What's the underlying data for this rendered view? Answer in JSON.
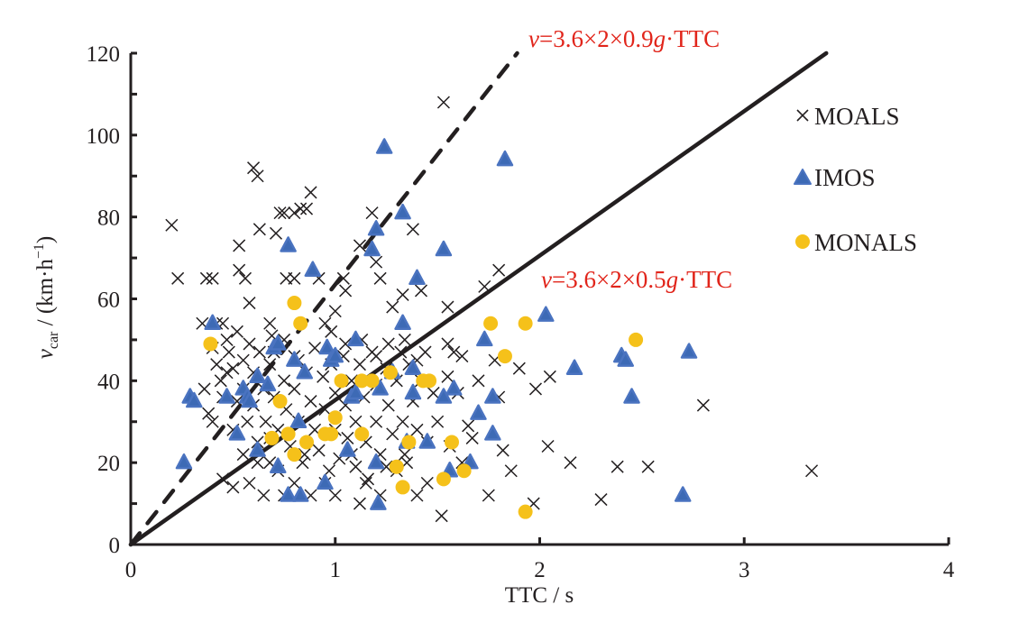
{
  "chart_data": {
    "type": "scatter",
    "title": "",
    "xlabel": "TTC / s",
    "ylabel_parts": {
      "var": "v",
      "sub": "car",
      "rest": " / (km·h",
      "sup": "−1",
      "close": ")"
    },
    "xlim": [
      0,
      4
    ],
    "ylim": [
      0,
      120
    ],
    "x_ticks": [
      "0",
      "1",
      "2",
      "3",
      "4"
    ],
    "y_ticks": [
      "0",
      "20",
      "40",
      "60",
      "80",
      "100",
      "120"
    ],
    "grid": false,
    "legend_position": "top-right",
    "colors": {
      "axis": "#231f20",
      "moals": "#231f20",
      "imos": "#3d6ab5",
      "monals": "#f5c11a",
      "annotation": "#e1251b"
    },
    "reference_lines": [
      {
        "name": "dashed",
        "label_var": "v",
        "label_mid": "=3.6×2×0.9",
        "label_g": "g",
        "label_end": "·TTC",
        "slope": 63.5
      },
      {
        "name": "solid",
        "label_var": "v",
        "label_mid": "=3.6×2×0.5",
        "label_g": "g",
        "label_end": "·TTC",
        "slope": 35.28
      }
    ],
    "series": [
      {
        "name": "MOALS",
        "marker": "x",
        "points": [
          [
            0.2,
            78
          ],
          [
            0.23,
            65
          ],
          [
            0.37,
            65
          ],
          [
            0.4,
            65
          ],
          [
            0.35,
            54
          ],
          [
            0.42,
            54
          ],
          [
            0.45,
            54
          ],
          [
            0.53,
            73
          ],
          [
            0.53,
            67
          ],
          [
            0.56,
            65
          ],
          [
            0.58,
            59
          ],
          [
            0.6,
            92
          ],
          [
            0.62,
            90
          ],
          [
            0.63,
            77
          ],
          [
            0.68,
            54
          ],
          [
            0.69,
            51
          ],
          [
            0.71,
            76
          ],
          [
            0.73,
            81
          ],
          [
            0.75,
            81
          ],
          [
            0.76,
            65
          ],
          [
            0.8,
            81
          ],
          [
            0.8,
            65
          ],
          [
            0.83,
            82
          ],
          [
            0.86,
            82
          ],
          [
            0.88,
            86
          ],
          [
            0.92,
            65
          ],
          [
            0.95,
            54
          ],
          [
            1.0,
            57
          ],
          [
            1.04,
            65
          ],
          [
            1.05,
            62
          ],
          [
            1.12,
            73
          ],
          [
            1.18,
            81
          ],
          [
            1.2,
            69
          ],
          [
            1.22,
            65
          ],
          [
            1.28,
            58
          ],
          [
            1.33,
            61
          ],
          [
            1.38,
            77
          ],
          [
            1.42,
            62
          ],
          [
            1.53,
            108
          ],
          [
            1.55,
            58
          ],
          [
            1.73,
            63
          ],
          [
            1.8,
            67
          ],
          [
            0.36,
            38
          ],
          [
            0.38,
            32
          ],
          [
            0.4,
            30
          ],
          [
            0.42,
            44
          ],
          [
            0.44,
            40
          ],
          [
            0.45,
            36
          ],
          [
            0.47,
            42
          ],
          [
            0.48,
            47
          ],
          [
            0.5,
            43
          ],
          [
            0.5,
            28
          ],
          [
            0.52,
            35
          ],
          [
            0.55,
            45
          ],
          [
            0.55,
            38
          ],
          [
            0.57,
            30
          ],
          [
            0.6,
            42
          ],
          [
            0.6,
            34
          ],
          [
            0.62,
            25
          ],
          [
            0.62,
            20
          ],
          [
            0.65,
            38
          ],
          [
            0.66,
            30
          ],
          [
            0.68,
            44
          ],
          [
            0.68,
            20
          ],
          [
            0.7,
            36
          ],
          [
            0.72,
            28
          ],
          [
            0.72,
            18
          ],
          [
            0.75,
            40
          ],
          [
            0.76,
            33
          ],
          [
            0.78,
            24
          ],
          [
            0.8,
            46
          ],
          [
            0.8,
            38
          ],
          [
            0.82,
            30
          ],
          [
            0.84,
            20
          ],
          [
            0.86,
            42
          ],
          [
            0.88,
            35
          ],
          [
            0.9,
            28
          ],
          [
            0.92,
            23
          ],
          [
            0.94,
            41
          ],
          [
            0.95,
            33
          ],
          [
            0.97,
            18
          ],
          [
            0.98,
            44
          ],
          [
            1.0,
            37
          ],
          [
            1.0,
            28
          ],
          [
            1.02,
            21
          ],
          [
            1.04,
            46
          ],
          [
            1.05,
            34
          ],
          [
            1.06,
            26
          ],
          [
            1.08,
            40
          ],
          [
            1.1,
            30
          ],
          [
            1.1,
            19
          ],
          [
            1.12,
            44
          ],
          [
            1.14,
            36
          ],
          [
            1.15,
            25
          ],
          [
            1.16,
            16
          ],
          [
            1.18,
            47
          ],
          [
            1.2,
            39
          ],
          [
            1.2,
            30
          ],
          [
            1.22,
            22
          ],
          [
            1.25,
            43
          ],
          [
            1.26,
            34
          ],
          [
            1.28,
            27
          ],
          [
            1.3,
            40
          ],
          [
            1.3,
            18
          ],
          [
            1.32,
            47
          ],
          [
            1.33,
            30
          ],
          [
            1.34,
            22
          ],
          [
            1.36,
            44
          ],
          [
            1.38,
            35
          ],
          [
            1.4,
            28
          ],
          [
            1.42,
            40
          ],
          [
            1.44,
            47
          ],
          [
            1.45,
            25
          ],
          [
            1.48,
            37
          ],
          [
            1.5,
            30
          ],
          [
            1.52,
            7
          ],
          [
            1.55,
            41
          ],
          [
            1.56,
            24
          ],
          [
            1.58,
            47
          ],
          [
            1.6,
            37
          ],
          [
            1.62,
            20
          ],
          [
            1.65,
            29
          ],
          [
            1.67,
            26
          ],
          [
            1.7,
            40
          ],
          [
            1.75,
            12
          ],
          [
            1.78,
            45
          ],
          [
            1.8,
            36
          ],
          [
            1.82,
            23
          ],
          [
            1.86,
            18
          ],
          [
            1.9,
            43
          ],
          [
            1.98,
            38
          ],
          [
            1.97,
            10
          ],
          [
            2.04,
            24
          ],
          [
            2.05,
            41
          ],
          [
            2.15,
            20
          ],
          [
            2.3,
            11
          ],
          [
            2.38,
            19
          ],
          [
            2.53,
            19
          ],
          [
            2.8,
            34
          ],
          [
            3.33,
            18
          ],
          [
            0.45,
            16
          ],
          [
            0.5,
            14
          ],
          [
            0.55,
            22
          ],
          [
            0.58,
            15
          ],
          [
            0.65,
            12
          ],
          [
            0.68,
            26
          ],
          [
            0.75,
            12
          ],
          [
            0.8,
            15
          ],
          [
            0.85,
            22
          ],
          [
            0.88,
            12
          ],
          [
            0.95,
            15
          ],
          [
            1.0,
            12
          ],
          [
            1.08,
            22
          ],
          [
            1.12,
            10
          ],
          [
            1.15,
            15
          ],
          [
            1.22,
            12
          ],
          [
            1.25,
            19
          ],
          [
            1.35,
            20
          ],
          [
            1.4,
            12
          ],
          [
            1.45,
            15
          ],
          [
            0.4,
            48
          ],
          [
            0.47,
            50
          ],
          [
            0.52,
            52
          ],
          [
            0.58,
            49
          ],
          [
            0.63,
            47
          ],
          [
            0.7,
            47
          ],
          [
            0.75,
            50
          ],
          [
            0.82,
            45
          ],
          [
            0.9,
            48
          ],
          [
            0.98,
            52
          ],
          [
            1.05,
            49
          ],
          [
            1.13,
            50
          ],
          [
            1.2,
            46
          ],
          [
            1.26,
            49
          ],
          [
            1.34,
            50
          ],
          [
            1.4,
            45
          ],
          [
            1.55,
            49
          ],
          [
            1.62,
            46
          ]
        ]
      },
      {
        "name": "IMOS",
        "marker": "triangle",
        "points": [
          [
            0.26,
            20
          ],
          [
            0.29,
            36
          ],
          [
            0.31,
            35
          ],
          [
            0.4,
            54
          ],
          [
            0.47,
            36
          ],
          [
            0.52,
            27
          ],
          [
            0.55,
            38
          ],
          [
            0.57,
            36
          ],
          [
            0.58,
            35
          ],
          [
            0.62,
            41
          ],
          [
            0.62,
            23
          ],
          [
            0.67,
            39
          ],
          [
            0.7,
            48
          ],
          [
            0.72,
            49
          ],
          [
            0.72,
            19
          ],
          [
            0.77,
            12
          ],
          [
            0.77,
            73
          ],
          [
            0.8,
            45
          ],
          [
            0.82,
            30
          ],
          [
            0.83,
            12
          ],
          [
            0.85,
            42
          ],
          [
            0.89,
            67
          ],
          [
            0.95,
            15
          ],
          [
            0.96,
            48
          ],
          [
            0.98,
            45
          ],
          [
            1.0,
            46
          ],
          [
            1.06,
            23
          ],
          [
            1.08,
            36
          ],
          [
            1.1,
            50
          ],
          [
            1.1,
            37
          ],
          [
            1.18,
            72
          ],
          [
            1.2,
            77
          ],
          [
            1.2,
            20
          ],
          [
            1.21,
            10
          ],
          [
            1.22,
            38
          ],
          [
            1.24,
            97
          ],
          [
            1.28,
            42
          ],
          [
            1.33,
            81
          ],
          [
            1.33,
            54
          ],
          [
            1.35,
            25
          ],
          [
            1.38,
            43
          ],
          [
            1.38,
            37
          ],
          [
            1.4,
            65
          ],
          [
            1.45,
            25
          ],
          [
            1.53,
            72
          ],
          [
            1.53,
            36
          ],
          [
            1.56,
            18
          ],
          [
            1.58,
            38
          ],
          [
            1.66,
            20
          ],
          [
            1.7,
            32
          ],
          [
            1.73,
            50
          ],
          [
            1.77,
            27
          ],
          [
            1.77,
            36
          ],
          [
            1.83,
            94
          ],
          [
            2.03,
            56
          ],
          [
            2.17,
            43
          ],
          [
            2.4,
            46
          ],
          [
            2.42,
            45
          ],
          [
            2.45,
            36
          ],
          [
            2.7,
            12
          ],
          [
            2.73,
            47
          ]
        ]
      },
      {
        "name": "MONALS",
        "marker": "circle",
        "points": [
          [
            0.39,
            49
          ],
          [
            0.69,
            26
          ],
          [
            0.73,
            35
          ],
          [
            0.77,
            27
          ],
          [
            0.8,
            59
          ],
          [
            0.8,
            22
          ],
          [
            0.83,
            54
          ],
          [
            0.86,
            25
          ],
          [
            0.95,
            27
          ],
          [
            0.98,
            27
          ],
          [
            1.0,
            31
          ],
          [
            1.03,
            40
          ],
          [
            1.13,
            40
          ],
          [
            1.13,
            27
          ],
          [
            1.18,
            40
          ],
          [
            1.27,
            42
          ],
          [
            1.3,
            19
          ],
          [
            1.33,
            14
          ],
          [
            1.36,
            25
          ],
          [
            1.43,
            40
          ],
          [
            1.46,
            40
          ],
          [
            1.53,
            16
          ],
          [
            1.57,
            25
          ],
          [
            1.63,
            18
          ],
          [
            1.76,
            54
          ],
          [
            1.83,
            46
          ],
          [
            1.93,
            54
          ],
          [
            1.93,
            8
          ],
          [
            2.47,
            50
          ]
        ]
      }
    ]
  }
}
